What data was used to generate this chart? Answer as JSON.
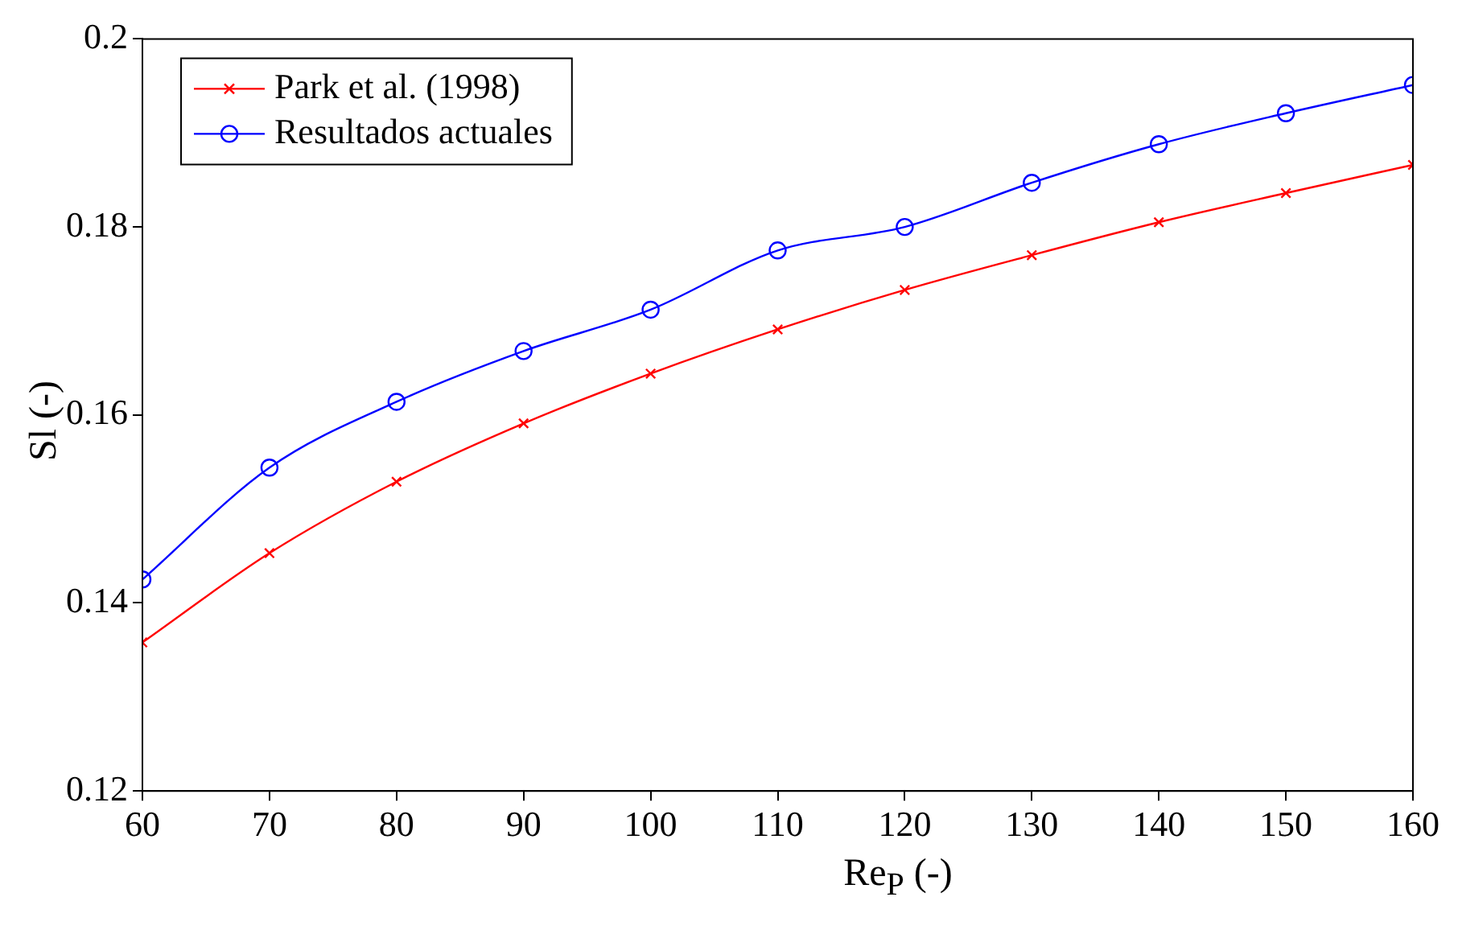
{
  "chart_data": {
    "type": "line",
    "xlabel": "Re$_{P}$ (-)",
    "ylabel": "Sl (-)",
    "x": [
      60,
      70,
      80,
      90,
      100,
      110,
      120,
      130,
      140,
      150,
      160
    ],
    "xlim": [
      60,
      160
    ],
    "xticks": [
      60,
      70,
      80,
      90,
      100,
      110,
      120,
      130,
      140,
      150,
      160
    ],
    "ylim": [
      0.12,
      0.2
    ],
    "yticks": [
      0.12,
      0.14,
      0.16,
      0.18,
      0.2
    ],
    "grid": false,
    "legend": "top left",
    "line_style": "solid",
    "series": [
      {
        "name": "Park et al. (1998)",
        "color": "#ff0000",
        "marker": "cross",
        "values": [
          0.1358,
          0.1453,
          0.1529,
          0.1591,
          0.1644,
          0.1691,
          0.1733,
          0.177,
          0.1805,
          0.1836,
          0.1866
        ]
      },
      {
        "name": "Resultados actuales",
        "color": "#0000ff",
        "marker": "circle",
        "values": [
          0.1425,
          0.1544,
          0.1614,
          0.1668,
          0.1712,
          0.1775,
          0.18,
          0.1847,
          0.1888,
          0.1921,
          0.1951
        ]
      }
    ]
  }
}
